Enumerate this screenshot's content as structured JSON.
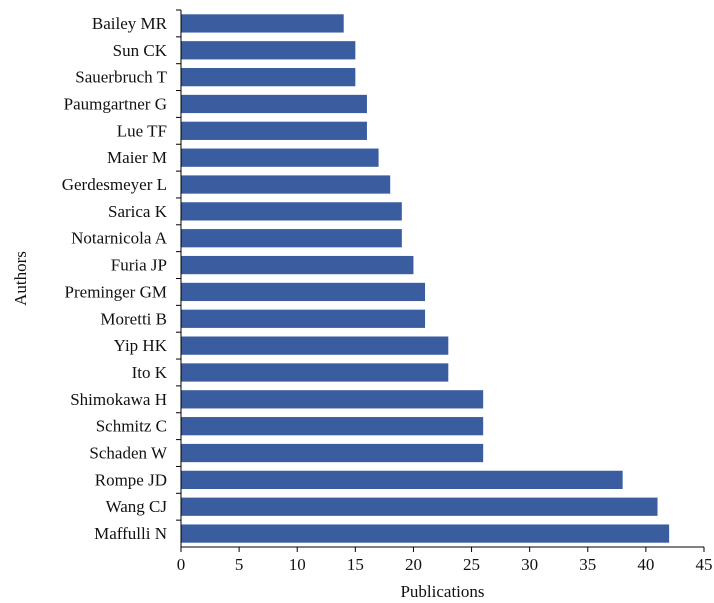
{
  "chart_data": {
    "type": "bar",
    "orientation": "horizontal",
    "categories": [
      "Bailey MR",
      "Sun CK",
      "Sauerbruch T",
      "Paumgartner G",
      "Lue TF",
      "Maier M",
      "Gerdesmeyer L",
      "Sarica K",
      "Notarnicola A",
      "Furia JP",
      "Preminger GM",
      "Moretti B",
      "Yip HK",
      "Ito K",
      "Shimokawa H",
      "Schmitz C",
      "Schaden W",
      "Rompe JD",
      "Wang CJ",
      "Maffulli N"
    ],
    "values": [
      14,
      15,
      15,
      16,
      16,
      17,
      18,
      19,
      19,
      20,
      21,
      21,
      23,
      23,
      26,
      26,
      26,
      38,
      41,
      42
    ],
    "xlabel": "Publications",
    "ylabel": "Authors",
    "xlim": [
      0,
      45
    ],
    "xticks": [
      "0",
      "5",
      "10",
      "15",
      "20",
      "25",
      "30",
      "35",
      "40",
      "45"
    ],
    "grid": false,
    "legend": "none",
    "bar_color": "#3a5da0",
    "axis_color": "#000000"
  }
}
